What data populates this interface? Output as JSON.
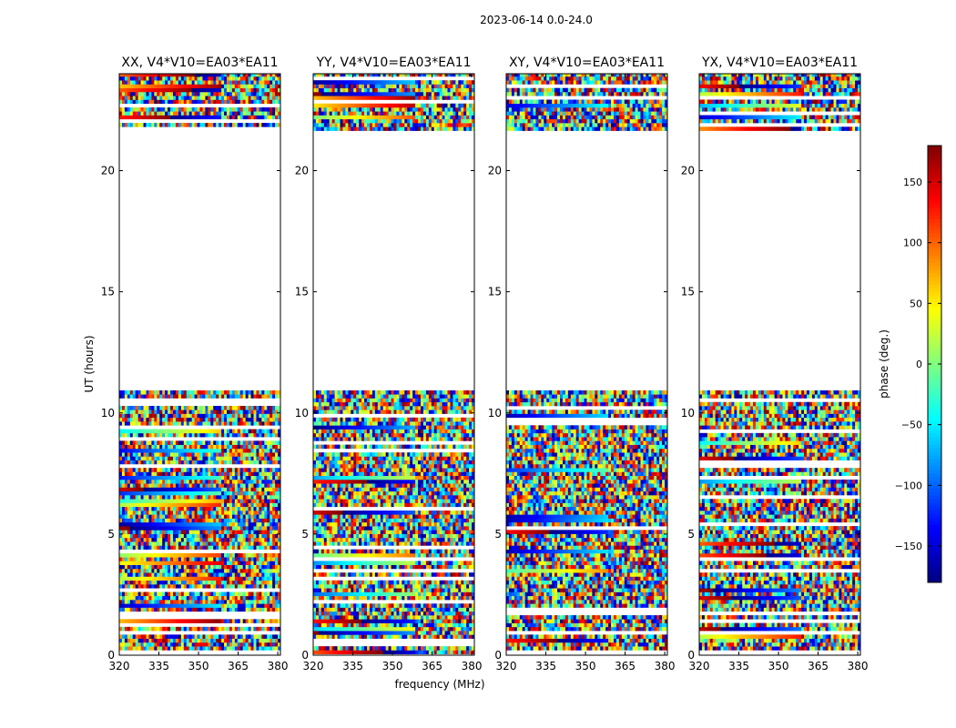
{
  "figure": {
    "suptitle": "2023-06-14 0.0-24.0",
    "ylabel": "UT (hours)",
    "xlabel": "frequency (MHz)",
    "colorbar": {
      "label": "phase (deg.)",
      "range": [
        -180,
        180
      ],
      "ticks": [
        150,
        100,
        50,
        0,
        -50,
        -100,
        -150
      ],
      "tick_labels": [
        "150",
        "100",
        "50",
        "0",
        "−50",
        "−100",
        "−150"
      ],
      "colormap": [
        "#00007f",
        "#0000ff",
        "#007fff",
        "#00ffff",
        "#7fff7f",
        "#ffff00",
        "#ff7f00",
        "#ff0000",
        "#7f0000"
      ]
    }
  },
  "chart_data": {
    "type": "heatmap",
    "description_unit": "phase (deg.) vs frequency (MHz) and UT (hours)",
    "xlim": [
      320,
      381
    ],
    "ylim": [
      0,
      24
    ],
    "x_ticks": [
      320,
      335,
      350,
      365,
      380
    ],
    "y_ticks": [
      0,
      5,
      10,
      15,
      20
    ],
    "blank_ut_range": [
      10.8,
      21.6
    ],
    "panels": [
      {
        "title": "XX, V4*V10=EA03*EA11"
      },
      {
        "title": "YY, V4*V10=EA03*EA11"
      },
      {
        "title": "XY, V4*V10=EA03*EA11"
      },
      {
        "title": "YX, V4*V10=EA03*EA11"
      }
    ]
  }
}
